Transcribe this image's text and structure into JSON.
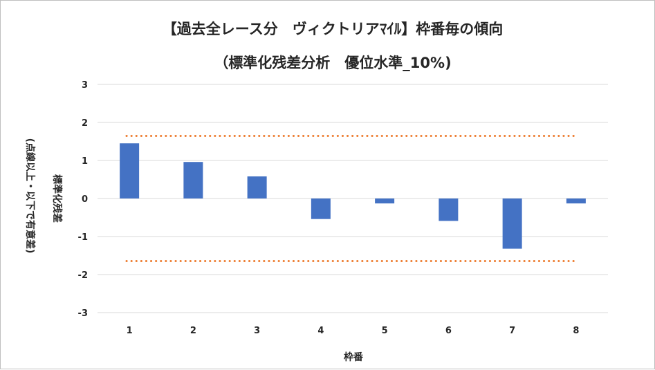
{
  "chart_data": {
    "type": "bar",
    "title": "【過去全レース分　ヴィクトリアﾏｲﾙ】枠番毎の傾向",
    "subtitle": "（標準化残差分析　優位水準_10%)",
    "xlabel": "枠番",
    "ylabel": "標準化残差",
    "ylabel_sub": "(点線以上・以下で有意差)",
    "categories": [
      "1",
      "2",
      "3",
      "4",
      "5",
      "6",
      "7",
      "8"
    ],
    "series": [
      {
        "values": [
          1.45,
          0.96,
          0.58,
          -0.54,
          -0.13,
          -0.59,
          -1.32,
          -0.13
        ]
      }
    ],
    "threshold_lines": [
      1.645,
      -1.645
    ],
    "ylim": [
      -3,
      3
    ],
    "yticks": [
      3,
      2,
      1,
      0,
      -1,
      -2,
      -3
    ],
    "grid": true,
    "legend": "none",
    "bar_color": "#4472C4",
    "threshold_color": "#ED7D31",
    "grid_color": "#d9d9d9"
  }
}
